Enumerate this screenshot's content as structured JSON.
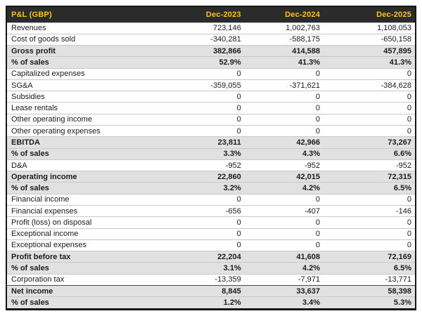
{
  "colors": {
    "header_bg": "#2b2b2b",
    "header_text": "#ffc20e",
    "band_bg": "#e1e1e1",
    "border": "#161616"
  },
  "table": {
    "title": "P&L (GBP)",
    "columns": [
      "Dec-2023",
      "Dec-2024",
      "Dec-2025"
    ],
    "rows": [
      {
        "label": "Revenues",
        "values": [
          "723,146",
          "1,002,763",
          "1,108,053"
        ],
        "emphasis": false,
        "divider_top": false
      },
      {
        "label": "Cost of goods sold",
        "values": [
          "-340,281",
          "-588,175",
          "-650,158"
        ],
        "emphasis": false,
        "divider_top": false
      },
      {
        "label": "Gross profit",
        "values": [
          "382,866",
          "414,588",
          "457,895"
        ],
        "emphasis": true,
        "divider_top": false
      },
      {
        "label": "% of sales",
        "values": [
          "52.9%",
          "41.3%",
          "41.3%"
        ],
        "emphasis": true,
        "divider_top": false
      },
      {
        "label": "Capitalized expenses",
        "values": [
          "0",
          "0",
          "0"
        ],
        "emphasis": false,
        "divider_top": false
      },
      {
        "label": "SG&A",
        "values": [
          "-359,055",
          "-371,621",
          "-384,628"
        ],
        "emphasis": false,
        "divider_top": false
      },
      {
        "label": "Subsidies",
        "values": [
          "0",
          "0",
          "0"
        ],
        "emphasis": false,
        "divider_top": false
      },
      {
        "label": "Lease rentals",
        "values": [
          "0",
          "0",
          "0"
        ],
        "emphasis": false,
        "divider_top": false
      },
      {
        "label": "Other operating income",
        "values": [
          "0",
          "0",
          "0"
        ],
        "emphasis": false,
        "divider_top": false
      },
      {
        "label": "Other operating expenses",
        "values": [
          "0",
          "0",
          "0"
        ],
        "emphasis": false,
        "divider_top": false
      },
      {
        "label": "EBITDA",
        "values": [
          "23,811",
          "42,966",
          "73,267"
        ],
        "emphasis": true,
        "divider_top": false
      },
      {
        "label": "% of sales",
        "values": [
          "3.3%",
          "4.3%",
          "6.6%"
        ],
        "emphasis": true,
        "divider_top": false
      },
      {
        "label": "D&A",
        "values": [
          "-952",
          "-952",
          "-952"
        ],
        "emphasis": false,
        "divider_top": false
      },
      {
        "label": "Operating income",
        "values": [
          "22,860",
          "42,015",
          "72,315"
        ],
        "emphasis": true,
        "divider_top": false
      },
      {
        "label": "% of sales",
        "values": [
          "3.2%",
          "4.2%",
          "6.5%"
        ],
        "emphasis": true,
        "divider_top": false
      },
      {
        "label": "Financial income",
        "values": [
          "0",
          "0",
          "0"
        ],
        "emphasis": false,
        "divider_top": false
      },
      {
        "label": "Financial expenses",
        "values": [
          "-656",
          "-407",
          "-146"
        ],
        "emphasis": false,
        "divider_top": false
      },
      {
        "label": "Profit (loss) on disposal",
        "values": [
          "0",
          "0",
          "0"
        ],
        "emphasis": false,
        "divider_top": false
      },
      {
        "label": "Exceptional income",
        "values": [
          "0",
          "0",
          "0"
        ],
        "emphasis": false,
        "divider_top": false
      },
      {
        "label": "Exceptional expenses",
        "values": [
          "0",
          "0",
          "0"
        ],
        "emphasis": false,
        "divider_top": false
      },
      {
        "label": "Profit before tax",
        "values": [
          "22,204",
          "41,608",
          "72,169"
        ],
        "emphasis": true,
        "divider_top": false
      },
      {
        "label": "% of sales",
        "values": [
          "3.1%",
          "4.2%",
          "6.5%"
        ],
        "emphasis": true,
        "divider_top": false
      },
      {
        "label": "Corporation tax",
        "values": [
          "-13,359",
          "-7,971",
          "-13,771"
        ],
        "emphasis": false,
        "divider_top": false
      },
      {
        "label": "Net income",
        "values": [
          "8,845",
          "33,637",
          "58,398"
        ],
        "emphasis": true,
        "divider_top": true
      },
      {
        "label": "% of sales",
        "values": [
          "1.2%",
          "3.4%",
          "5.3%"
        ],
        "emphasis": true,
        "divider_top": false
      }
    ]
  },
  "chart_data": {
    "type": "table",
    "title": "P&L (GBP)",
    "columns": [
      "Dec-2023",
      "Dec-2024",
      "Dec-2025"
    ],
    "rows": [
      {
        "label": "Revenues",
        "values": [
          723146,
          1002763,
          1108053
        ]
      },
      {
        "label": "Cost of goods sold",
        "values": [
          -340281,
          -588175,
          -650158
        ]
      },
      {
        "label": "Gross profit",
        "values": [
          382866,
          414588,
          457895
        ]
      },
      {
        "label": "Gross profit % of sales",
        "values": [
          "52.9%",
          "41.3%",
          "41.3%"
        ]
      },
      {
        "label": "Capitalized expenses",
        "values": [
          0,
          0,
          0
        ]
      },
      {
        "label": "SG&A",
        "values": [
          -359055,
          -371621,
          -384628
        ]
      },
      {
        "label": "Subsidies",
        "values": [
          0,
          0,
          0
        ]
      },
      {
        "label": "Lease rentals",
        "values": [
          0,
          0,
          0
        ]
      },
      {
        "label": "Other operating income",
        "values": [
          0,
          0,
          0
        ]
      },
      {
        "label": "Other operating expenses",
        "values": [
          0,
          0,
          0
        ]
      },
      {
        "label": "EBITDA",
        "values": [
          23811,
          42966,
          73267
        ]
      },
      {
        "label": "EBITDA % of sales",
        "values": [
          "3.3%",
          "4.3%",
          "6.6%"
        ]
      },
      {
        "label": "D&A",
        "values": [
          -952,
          -952,
          -952
        ]
      },
      {
        "label": "Operating income",
        "values": [
          22860,
          42015,
          72315
        ]
      },
      {
        "label": "Operating income % of sales",
        "values": [
          "3.2%",
          "4.2%",
          "6.5%"
        ]
      },
      {
        "label": "Financial income",
        "values": [
          0,
          0,
          0
        ]
      },
      {
        "label": "Financial expenses",
        "values": [
          -656,
          -407,
          -146
        ]
      },
      {
        "label": "Profit (loss) on disposal",
        "values": [
          0,
          0,
          0
        ]
      },
      {
        "label": "Exceptional income",
        "values": [
          0,
          0,
          0
        ]
      },
      {
        "label": "Exceptional expenses",
        "values": [
          0,
          0,
          0
        ]
      },
      {
        "label": "Profit before tax",
        "values": [
          22204,
          41608,
          72169
        ]
      },
      {
        "label": "Profit before tax % of sales",
        "values": [
          "3.1%",
          "4.2%",
          "6.5%"
        ]
      },
      {
        "label": "Corporation tax",
        "values": [
          -13359,
          -7971,
          -13771
        ]
      },
      {
        "label": "Net income",
        "values": [
          8845,
          33637,
          58398
        ]
      },
      {
        "label": "Net income % of sales",
        "values": [
          "1.2%",
          "3.4%",
          "5.3%"
        ]
      }
    ]
  }
}
